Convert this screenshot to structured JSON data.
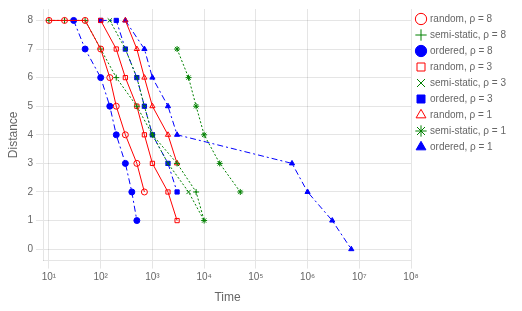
{
  "chart_data": {
    "type": "line",
    "x_label": "Time",
    "y_label": "Distance",
    "log": "x",
    "grid": true,
    "legend": "upper right",
    "xlim": [
      8,
      100000000
    ],
    "ylim": [
      -0.4,
      8.4
    ],
    "xticks": [
      {
        "value": 10,
        "label": "10¹"
      },
      {
        "value": 100,
        "label": "10²"
      },
      {
        "value": 1000,
        "label": "10³"
      },
      {
        "value": 10000,
        "label": "10⁴"
      },
      {
        "value": 100000,
        "label": "10⁵"
      },
      {
        "value": 1000000,
        "label": "10⁶"
      },
      {
        "value": 10000000,
        "label": "10⁷"
      },
      {
        "value": 100000000,
        "label": "10⁸"
      }
    ],
    "yticks": [
      0,
      1,
      2,
      3,
      4,
      5,
      6,
      7,
      8
    ],
    "series": [
      {
        "name": "random, ρ = 8",
        "color": "#ff0000",
        "line_style": "solid",
        "marker": "open circle",
        "x": [
          10,
          20,
          50,
          100,
          150,
          200,
          300,
          500,
          700
        ],
        "values": [
          8,
          8,
          8,
          7,
          6,
          5,
          4,
          3,
          2
        ]
      },
      {
        "name": "semi-static, ρ = 8",
        "color": "#008000",
        "line_style": "dotted",
        "marker": "plus",
        "x": [
          10,
          20,
          50,
          100,
          200,
          500,
          1000,
          3000,
          7000,
          10000
        ],
        "values": [
          8,
          8,
          8,
          7,
          6,
          5,
          4,
          3,
          2,
          1
        ]
      },
      {
        "name": "ordered, ρ = 8",
        "color": "#0000ff",
        "line_style": "dashdot",
        "marker": "circle",
        "x": [
          30,
          50,
          100,
          150,
          200,
          300,
          400,
          500
        ],
        "values": [
          8,
          7,
          6,
          5,
          4,
          3,
          2,
          1
        ]
      },
      {
        "name": "random, ρ = 3",
        "color": "#ff0000",
        "line_style": "solid",
        "marker": "open square",
        "x": [
          100,
          200,
          300,
          500,
          700,
          1000,
          2000,
          3000
        ],
        "values": [
          8,
          7,
          6,
          5,
          4,
          3,
          2,
          1
        ]
      },
      {
        "name": "semi-static, ρ = 3",
        "color": "#008000",
        "line_style": "dotted",
        "marker": "x",
        "x": [
          150,
          300,
          500,
          700,
          1000,
          2000,
          5000,
          10000
        ],
        "values": [
          8,
          7,
          6,
          5,
          4,
          3,
          2,
          1
        ]
      },
      {
        "name": "ordered, ρ = 3",
        "color": "#0000ff",
        "line_style": "dashdot",
        "marker": "square",
        "x": [
          100,
          200,
          300,
          500,
          700,
          1000,
          2000,
          3000
        ],
        "values": [
          8,
          8,
          7,
          6,
          5,
          4,
          3,
          2
        ]
      },
      {
        "name": "random, ρ = 1",
        "color": "#ff0000",
        "line_style": "solid",
        "marker": "open triangle",
        "x": [
          300,
          500,
          700,
          1000,
          2000,
          3000
        ],
        "values": [
          8,
          7,
          6,
          5,
          4,
          3
        ]
      },
      {
        "name": "semi-static, ρ = 1",
        "color": "#008000",
        "line_style": "dotted",
        "marker": "star",
        "x": [
          3000,
          5000,
          7000,
          10000,
          20000,
          50000
        ],
        "values": [
          7,
          6,
          5,
          4,
          3,
          2
        ]
      },
      {
        "name": "ordered, ρ = 1",
        "color": "#0000ff",
        "line_style": "dashdot",
        "marker": "triangle",
        "x": [
          300,
          700,
          1000,
          2000,
          3000,
          500000,
          1000000,
          3000000,
          7000000
        ],
        "values": [
          8,
          7,
          6,
          5,
          4,
          3,
          2,
          1,
          0
        ]
      }
    ]
  }
}
